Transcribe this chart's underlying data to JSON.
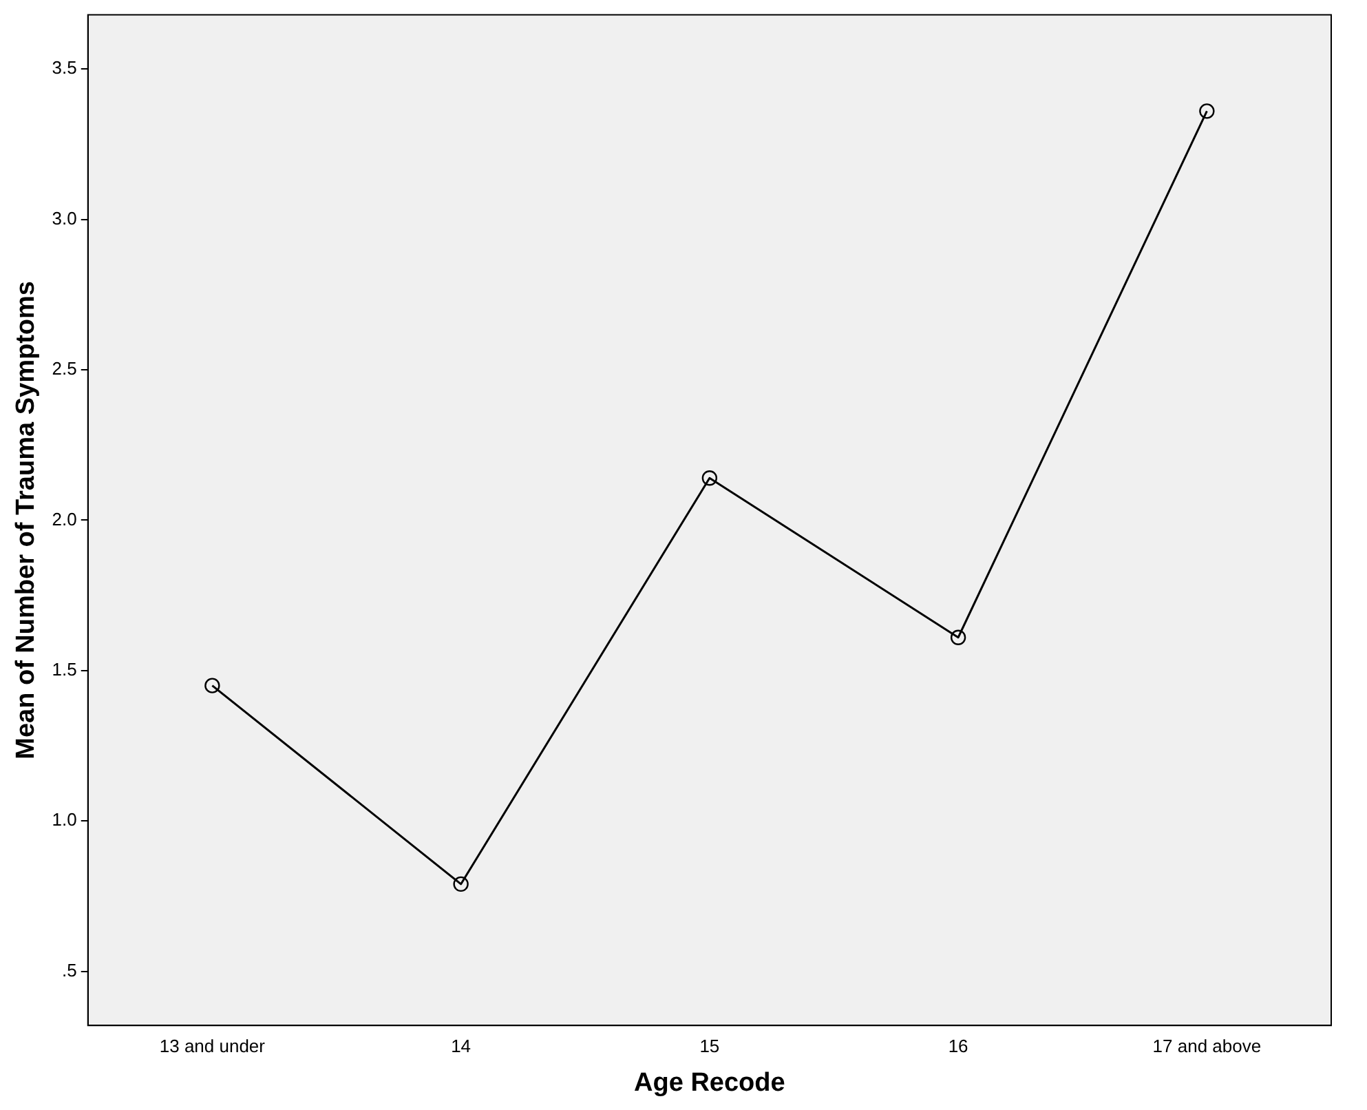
{
  "chart_data": {
    "type": "line",
    "xlabel": "Age Recode",
    "ylabel": "Mean of Number of Trauma Symptoms",
    "categories": [
      "13 and under",
      "14",
      "15",
      "16",
      "17 and above"
    ],
    "values": [
      1.45,
      0.79,
      2.14,
      1.61,
      3.36
    ],
    "color": "#000000",
    "marker": "circle",
    "line_style": "solid",
    "grid": false,
    "legend": false,
    "ylim": [
      0.32,
      3.68
    ],
    "yticks": [
      {
        "value": 0.5,
        "label": ".5"
      },
      {
        "value": 1,
        "label": "1.0"
      },
      {
        "value": 1.5,
        "label": "1.5"
      },
      {
        "value": 2,
        "label": "2.0"
      },
      {
        "value": 2.5,
        "label": "2.5"
      },
      {
        "value": 3,
        "label": "3.0"
      },
      {
        "value": 3.5,
        "label": "3.5"
      }
    ]
  }
}
